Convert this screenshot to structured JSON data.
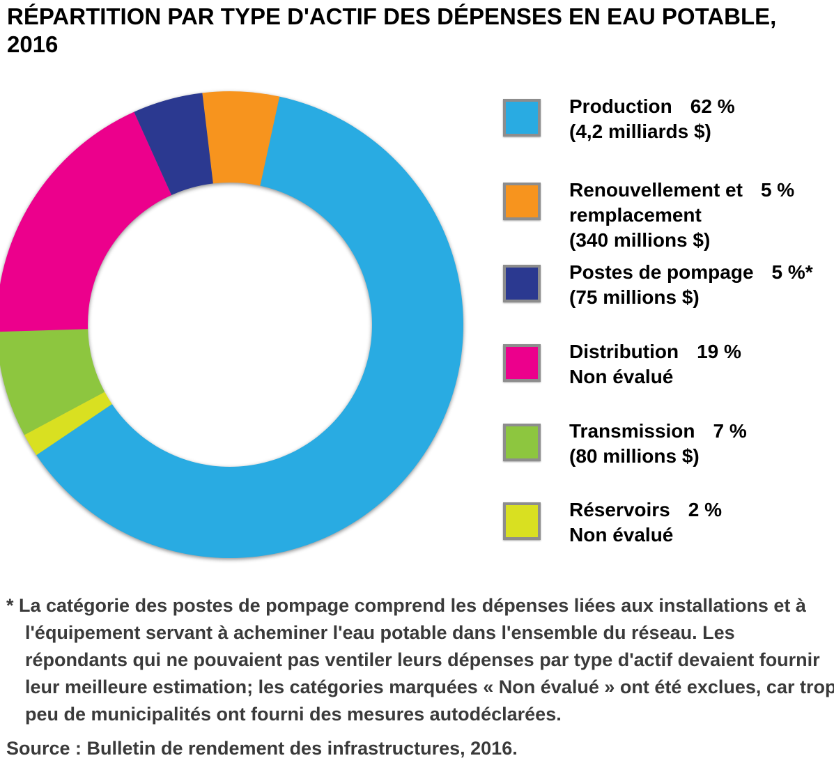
{
  "title": "RÉPARTITION PAR TYPE D'ACTIF DES DÉPENSES EN EAU POTABLE, 2016",
  "chart_data": {
    "type": "donut",
    "title": "RÉPARTITION PAR TYPE D'ACTIF DES DÉPENSES EN EAU POTABLE, 2016",
    "legend_position": "right",
    "start_angle_deg": -6.8,
    "outer_radius": 335,
    "inner_radius": 204,
    "segments": [
      {
        "label": "Production",
        "label_line2": "",
        "percent": "62 %",
        "amount": "(4,2 milliards $)",
        "value": 62.15,
        "color": "#29ABE2"
      },
      {
        "label": "Renouvellement et",
        "label_line2": "remplacement",
        "percent": "5 %",
        "amount": "(340 millions $)",
        "value": 5.3,
        "color": "#F7941E"
      },
      {
        "label": "Postes de pompage",
        "label_line2": "",
        "percent": "5 %*",
        "amount": "(75 millions $)",
        "value": 4.85,
        "color": "#2B3990"
      },
      {
        "label": "Distribution",
        "label_line2": "",
        "percent": "19 %",
        "amount": "Non évalué",
        "value": 18.75,
        "color": "#EC008C"
      },
      {
        "label": "Transmission",
        "label_line2": "",
        "percent": "7 %",
        "amount": "(80 millions $)",
        "value": 7.35,
        "color": "#8DC63F"
      },
      {
        "label": "Réservoirs",
        "label_line2": "",
        "percent": "2 %",
        "amount": "Non évalué",
        "value": 1.6,
        "color": "#D9E021"
      }
    ],
    "draw_order": [
      1,
      0,
      5,
      4,
      3,
      2
    ]
  },
  "footnote": "* La catégorie des postes de pompage comprend les dépenses liées aux installations et à l'équipement servant à acheminer l'eau potable dans l'ensemble du réseau. Les répondants qui ne pouvaient pas ventiler leurs dépenses par type d'actif devaient fournir leur meilleure estimation; les catégories marquées « Non évalué » ont été exclues, car trop peu de municipalités ont fourni des mesures autodéclarées.",
  "source": "Source : Bulletin de rendement des infrastructures, 2016."
}
